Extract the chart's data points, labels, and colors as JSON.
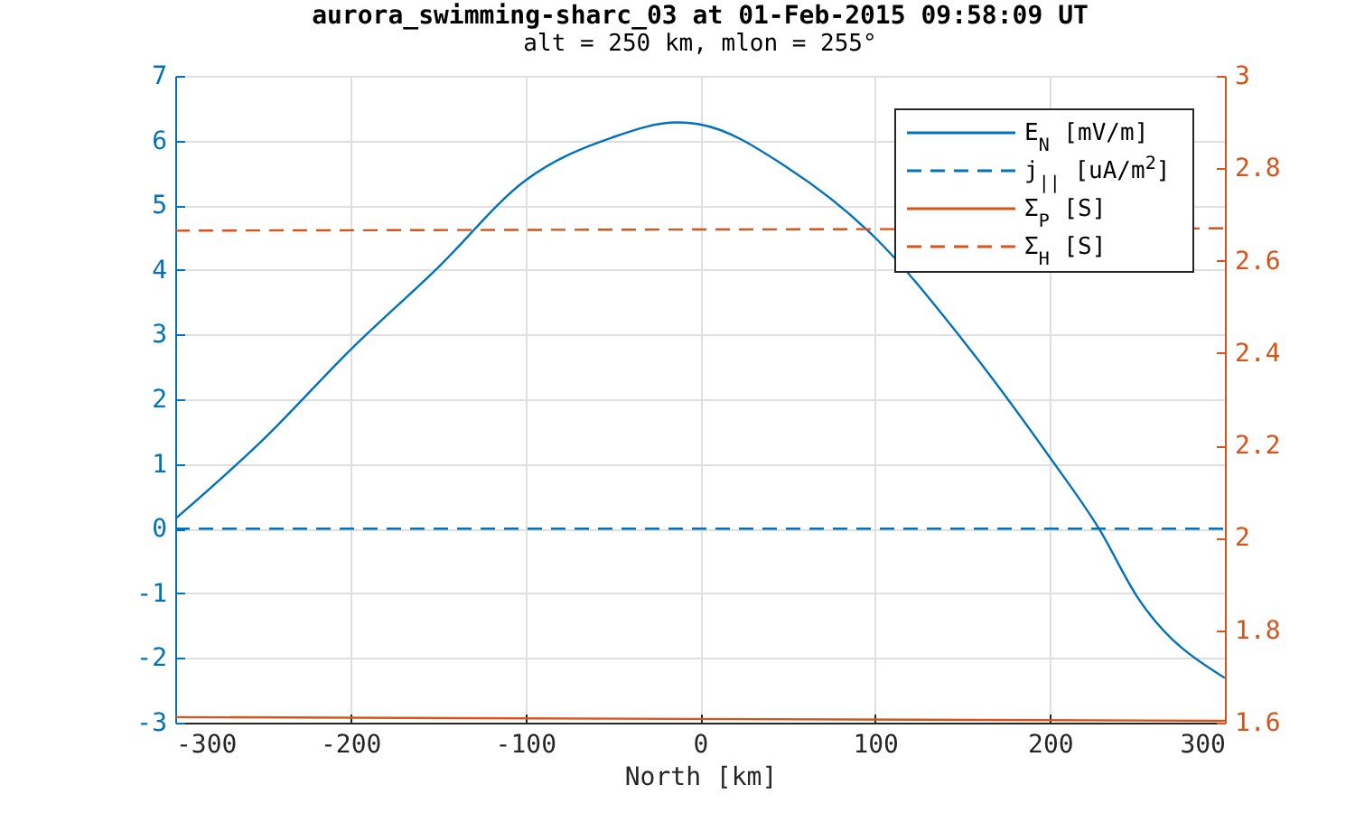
{
  "chart_data": {
    "type": "line",
    "title": "aurora_swimming-sharc_03 at 01-Feb-2015 09:58:09 UT",
    "subtitle": "alt = 250 km, mlon = 255°",
    "xlabel": "North [km]",
    "xlim": [
      -300,
      300
    ],
    "xticks": [
      -300,
      -200,
      -100,
      0,
      100,
      200,
      300
    ],
    "ylim": [
      -3,
      7
    ],
    "yticks": [
      -3,
      -2,
      -1,
      0,
      1,
      2,
      3,
      4,
      5,
      6,
      7
    ],
    "y2lim": [
      1.6,
      3
    ],
    "y2ticks": [
      1.6,
      1.8,
      2,
      2.2,
      2.4,
      2.6,
      2.8,
      3
    ],
    "grid": true,
    "legend": "top right",
    "series": [
      {
        "name": "E$_{N}$ [mV/m]",
        "color": "#0072bd",
        "line_style": "solid",
        "x": [
          -300,
          -250,
          -200,
          -150,
          -100,
          -50,
          -13,
          0,
          50,
          100,
          150,
          200,
          228,
          250,
          300
        ],
        "values": [
          0.15,
          1.37,
          2.76,
          4.03,
          5.38,
          6.05,
          6.28,
          6.25,
          5.58,
          4.5,
          2.92,
          1.1,
          0,
          -1.06,
          -2.31
        ]
      },
      {
        "name": "j$_{||}$ [uA/m$^{2}$]",
        "color": "#0072bd",
        "line_style": "dashed",
        "x": [
          -300,
          300
        ],
        "values": [
          0,
          0
        ]
      },
      {
        "name": "Σ$_{P}$ [S]",
        "color": "#d95319",
        "line_style": "solid",
        "axis": "y2",
        "x": [
          -300,
          300
        ],
        "values": [
          1.612,
          1.604
        ]
      },
      {
        "name": "Σ$_{H}$ [S]",
        "color": "#d95319",
        "line_style": "dashed",
        "axis": "y2",
        "x": [
          -300,
          300
        ],
        "values": [
          2.665,
          2.67
        ]
      }
    ]
  }
}
